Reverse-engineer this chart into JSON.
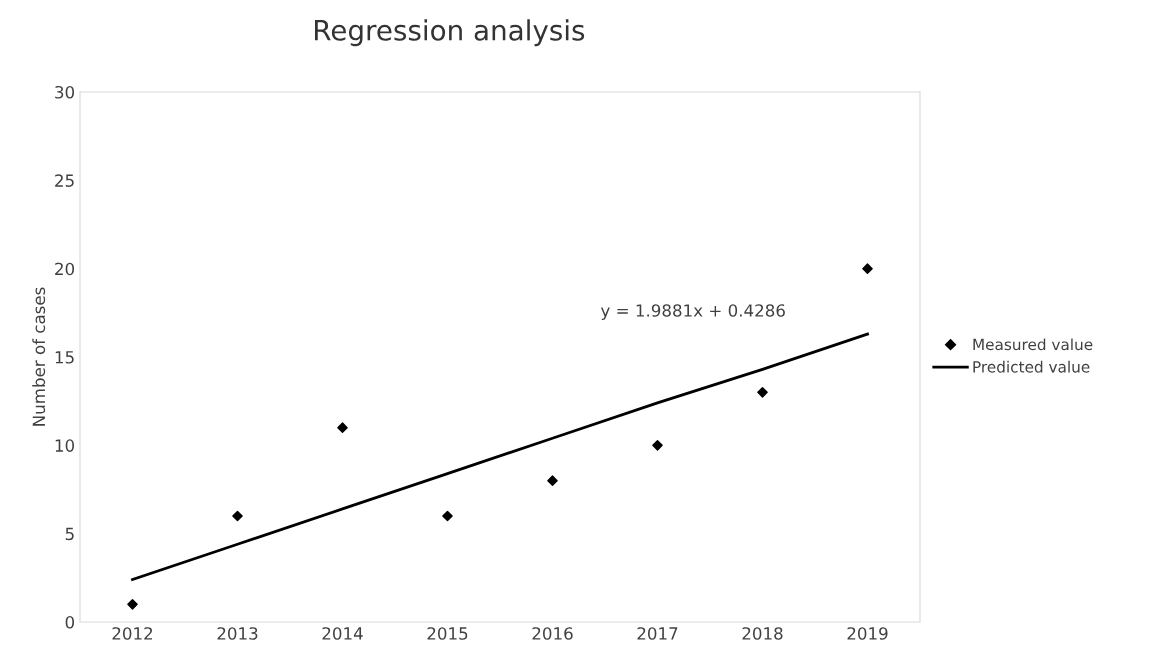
{
  "chart_data": {
    "type": "scatter",
    "title": "Regression analysis",
    "ylabel": "Number of cases",
    "categories": [
      "2012",
      "2013",
      "2014",
      "2015",
      "2016",
      "2017",
      "2018",
      "2019"
    ],
    "series": [
      {
        "name": "Measured value",
        "color": "#000000",
        "marker": "diamond",
        "values": [
          1,
          6,
          11,
          6,
          8,
          10,
          13,
          20
        ]
      },
      {
        "name": "Predicted value",
        "type": "line",
        "color": "#000000",
        "marker": "none",
        "line_style": "solid",
        "values": [
          2.4,
          4.4,
          6.4,
          8.4,
          10.4,
          12.4,
          14.3,
          16.3
        ]
      }
    ],
    "annotations": [
      "y = 1.9881x + 0.4286"
    ],
    "ylim": [
      0,
      30
    ],
    "yticks": [
      0,
      5,
      10,
      15,
      20,
      25,
      30
    ],
    "grid": false,
    "legend": "right"
  }
}
